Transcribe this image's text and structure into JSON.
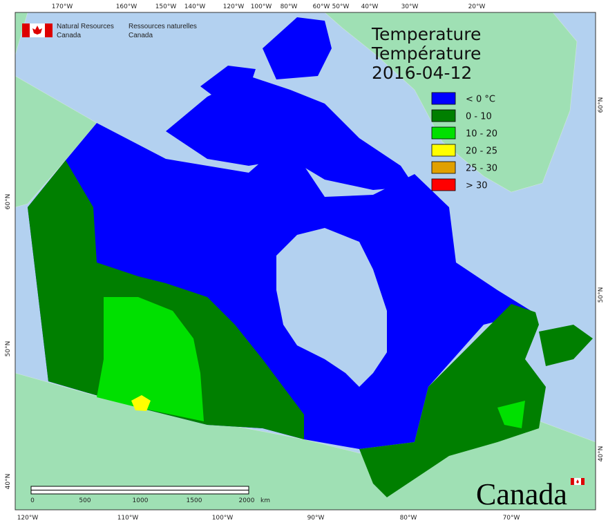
{
  "header": {
    "org_en": [
      "Natural Resources",
      "Canada"
    ],
    "org_fr": [
      "Ressources naturelles",
      "Canada"
    ]
  },
  "title": [
    "Temperature",
    "Température"
  ],
  "date": "2016-04-12",
  "legend": [
    {
      "label": "< 0 °C",
      "color": "#0000ff"
    },
    {
      "label": "0 - 10",
      "color": "#007f00"
    },
    {
      "label": "10 - 20",
      "color": "#00e000"
    },
    {
      "label": "20 - 25",
      "color": "#ffff00"
    },
    {
      "label": "25 - 30",
      "color": "#e0a000"
    },
    {
      "label": "> 30",
      "color": "#ff0000"
    }
  ],
  "graticule": {
    "top": [
      "170°W",
      "160°W",
      "150°W",
      "140°W",
      "120°W",
      "100°W",
      "80°W",
      "60°W",
      "50°W",
      "40°W",
      "30°W",
      "20°W"
    ],
    "bottom": [
      "120°W",
      "110°W",
      "100°W",
      "90°W",
      "80°W",
      "70°W"
    ],
    "left": [
      "60°N",
      "50°N",
      "40°N"
    ],
    "right": [
      "60°N",
      "50°N",
      "40°N"
    ]
  },
  "scale_bar": {
    "labels": [
      "0",
      "500",
      "1000",
      "1500",
      "2000"
    ],
    "unit": "km"
  },
  "wordmark": "Canada"
}
